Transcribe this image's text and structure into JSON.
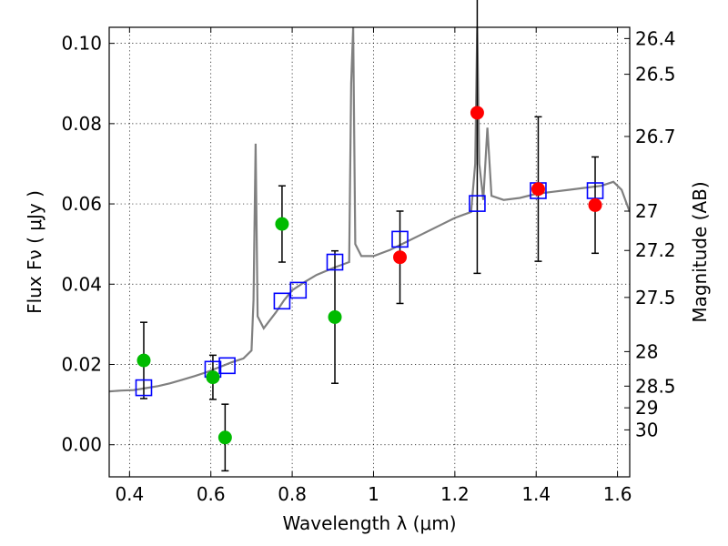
{
  "chart_data": {
    "type": "scatter",
    "title": "",
    "xlabel": "Wavelength  λ (μm)",
    "ylabel": "Flux  Fν  ( μJy )",
    "y2label": "Magnitude (AB)",
    "xlim": [
      0.35,
      1.63
    ],
    "ylim": [
      -0.008,
      0.104
    ],
    "xticks": [
      0.4,
      0.6,
      0.8,
      1.0,
      1.2,
      1.4,
      1.6
    ],
    "xtick_labels": [
      "0.4",
      "0.6",
      "0.8",
      "1",
      "1.2",
      "1.4",
      "1.6"
    ],
    "yticks": [
      0.0,
      0.02,
      0.04,
      0.06,
      0.08,
      0.1
    ],
    "ytick_labels": [
      "0.00",
      "0.02",
      "0.04",
      "0.06",
      "0.08",
      "0.10"
    ],
    "y2ticks": [
      {
        "label": "26.4",
        "flux": 0.1012
      },
      {
        "label": "26.5",
        "flux": 0.0923
      },
      {
        "label": "26.7",
        "flux": 0.0768
      },
      {
        "label": "27",
        "flux": 0.0582
      },
      {
        "label": "27.2",
        "flux": 0.0484
      },
      {
        "label": "27.5",
        "flux": 0.0367
      },
      {
        "label": "28",
        "flux": 0.0232
      },
      {
        "label": "28.5",
        "flux": 0.0146
      },
      {
        "label": "29",
        "flux": 0.0092
      },
      {
        "label": "30",
        "flux": 0.0037
      }
    ],
    "grid": true,
    "colors": {
      "spectrum": "#808080",
      "model": "#0000ff",
      "green": "#00bb00",
      "red": "#ff0000",
      "errorbar": "#000000"
    },
    "series": [
      {
        "kind": "line",
        "values": [
          [
            0.35,
            0.0133
          ],
          [
            0.38,
            0.0135
          ],
          [
            0.41,
            0.0136
          ],
          [
            0.44,
            0.0141
          ],
          [
            0.47,
            0.0146
          ],
          [
            0.5,
            0.0153
          ],
          [
            0.53,
            0.0162
          ],
          [
            0.56,
            0.0171
          ],
          [
            0.59,
            0.0181
          ],
          [
            0.62,
            0.0193
          ],
          [
            0.65,
            0.0205
          ],
          [
            0.68,
            0.0215
          ],
          [
            0.7,
            0.0235
          ],
          [
            0.705,
            0.036
          ],
          [
            0.71,
            0.075
          ],
          [
            0.715,
            0.032
          ],
          [
            0.73,
            0.029
          ],
          [
            0.76,
            0.033
          ],
          [
            0.78,
            0.036
          ],
          [
            0.8,
            0.0385
          ],
          [
            0.83,
            0.0405
          ],
          [
            0.86,
            0.0423
          ],
          [
            0.9,
            0.044
          ],
          [
            0.94,
            0.0455
          ],
          [
            0.945,
            0.09
          ],
          [
            0.95,
            0.104
          ],
          [
            0.955,
            0.05
          ],
          [
            0.97,
            0.047
          ],
          [
            1.0,
            0.047
          ],
          [
            1.04,
            0.0485
          ],
          [
            1.08,
            0.0505
          ],
          [
            1.12,
            0.0525
          ],
          [
            1.16,
            0.0545
          ],
          [
            1.2,
            0.0565
          ],
          [
            1.24,
            0.058
          ],
          [
            1.25,
            0.07
          ],
          [
            1.255,
            0.104
          ],
          [
            1.26,
            0.07
          ],
          [
            1.27,
            0.061
          ],
          [
            1.28,
            0.079
          ],
          [
            1.29,
            0.062
          ],
          [
            1.32,
            0.061
          ],
          [
            1.36,
            0.0615
          ],
          [
            1.4,
            0.0625
          ],
          [
            1.44,
            0.063
          ],
          [
            1.48,
            0.0635
          ],
          [
            1.52,
            0.064
          ],
          [
            1.56,
            0.0645
          ],
          [
            1.59,
            0.0655
          ],
          [
            1.61,
            0.0635
          ],
          [
            1.63,
            0.058
          ]
        ]
      },
      {
        "kind": "model-photometry",
        "values": [
          [
            0.435,
            0.0142
          ],
          [
            0.605,
            0.0188
          ],
          [
            0.64,
            0.0197
          ],
          [
            0.775,
            0.0358
          ],
          [
            0.815,
            0.0385
          ],
          [
            0.905,
            0.0455
          ],
          [
            1.065,
            0.0512
          ],
          [
            1.255,
            0.0601
          ],
          [
            1.405,
            0.0633
          ],
          [
            1.545,
            0.0633
          ]
        ]
      },
      {
        "kind": "observed-green",
        "values": [
          [
            0.435,
            0.021,
            0.0095
          ],
          [
            0.605,
            0.0168,
            0.0055
          ],
          [
            0.635,
            0.0018,
            0.0083
          ],
          [
            0.775,
            0.055,
            0.0095
          ],
          [
            0.905,
            0.0318,
            0.0165
          ]
        ]
      },
      {
        "kind": "observed-red",
        "values": [
          [
            1.065,
            0.0467,
            0.0115
          ],
          [
            1.255,
            0.0827,
            0.04
          ],
          [
            1.405,
            0.0637,
            0.018
          ],
          [
            1.545,
            0.0597,
            0.012
          ]
        ]
      }
    ]
  }
}
